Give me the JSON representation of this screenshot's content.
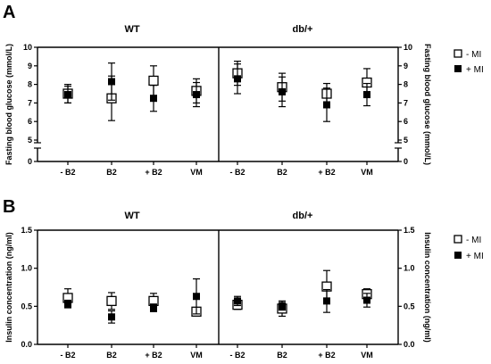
{
  "panel_labels": [
    "A",
    "B"
  ],
  "legend": {
    "open": "- MI",
    "filled": "+ MI"
  },
  "chart_data": [
    {
      "type": "scatter",
      "panel": "A",
      "groups": [
        "WT",
        "db/+"
      ],
      "categories": [
        "- B2",
        "B2",
        "+ B2",
        "VM"
      ],
      "ylabel_left": "Fasting blood glucose (mmol/L)",
      "ylabel_right": "Fasting blood glucose (mmol/L)",
      "y_ticks": [
        "0",
        "5",
        "6",
        "7",
        "8",
        "9",
        "10"
      ],
      "ylim": [
        0,
        10
      ],
      "axis_break": [
        0,
        5
      ],
      "series": [
        {
          "name": "- MI",
          "marker": "open-square",
          "values": [
            7.5,
            7.25,
            8.2,
            7.65,
            8.6,
            7.85,
            7.5,
            8.1
          ],
          "sd": [
            0.5,
            1.2,
            0.8,
            0.65,
            0.65,
            0.75,
            0.55,
            0.75
          ]
        },
        {
          "name": "+ MI",
          "marker": "filled-square",
          "values": [
            7.45,
            8.15,
            7.25,
            7.45,
            8.3,
            7.6,
            6.9,
            7.45
          ],
          "sd": [
            0.45,
            1.0,
            0.7,
            0.65,
            0.8,
            0.8,
            0.9,
            0.6
          ]
        }
      ]
    },
    {
      "type": "scatter",
      "panel": "B",
      "groups": [
        "WT",
        "db/+"
      ],
      "categories": [
        "- B2",
        "B2",
        "+ B2",
        "VM"
      ],
      "ylabel_left": "Insulin concentration (ng/ml)",
      "ylabel_right": "Insulin concentration (ng/ml)",
      "y_ticks": [
        "0.0",
        "0.5",
        "1.0",
        "1.5"
      ],
      "ylim": [
        0,
        1.5
      ],
      "series": [
        {
          "name": "- MI",
          "marker": "open-square",
          "values": [
            0.61,
            0.57,
            0.57,
            0.43,
            0.52,
            0.47,
            0.76,
            0.66
          ],
          "sd": [
            0.12,
            0.11,
            0.1,
            0.0,
            0.06,
            0.1,
            0.21,
            0.07
          ]
        },
        {
          "name": "+ MI",
          "marker": "filled-square",
          "values": [
            0.53,
            0.36,
            0.48,
            0.63,
            0.57,
            0.5,
            0.57,
            0.58
          ],
          "sd": [
            0.05,
            0.08,
            0.05,
            0.23,
            0.06,
            0.05,
            0.15,
            0.09
          ]
        }
      ]
    }
  ]
}
